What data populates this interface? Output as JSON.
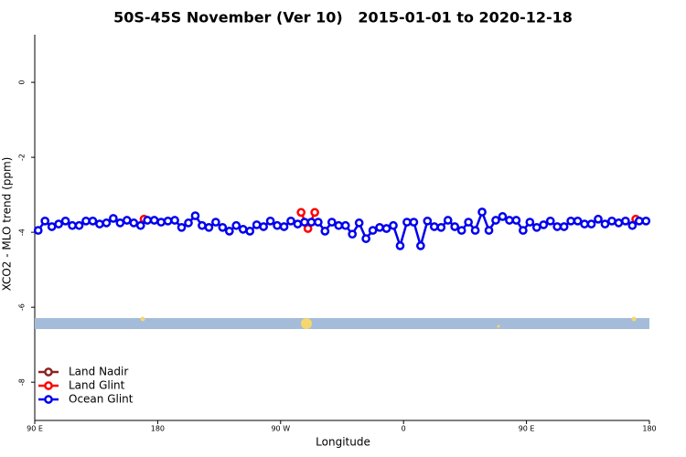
{
  "chart_data": {
    "type": "line",
    "title": "50S-45S November (Ver 10)   2015-01-01 to 2020-12-18",
    "x_label": "Longitude",
    "y_label": "XCO2 - MLO trend (ppm)",
    "xlim": [
      90,
      540
    ],
    "ylim": [
      -9.02,
      1.27
    ],
    "xticks": [
      {
        "value": 90,
        "label": "90 E"
      },
      {
        "value": 180,
        "label": "180"
      },
      {
        "value": 270,
        "label": "90 W"
      },
      {
        "value": 360,
        "label": "0"
      },
      {
        "value": 450,
        "label": "90 E"
      },
      {
        "value": 540,
        "label": "180"
      }
    ],
    "yticks": [
      0,
      -2,
      -4,
      -6,
      -8
    ],
    "legend": "bottom-left",
    "series": [
      {
        "name": "Land Nadir",
        "color": "#8b2323",
        "x": [],
        "values": []
      },
      {
        "name": "Land Glint",
        "color": "#ff0000",
        "x": [
          170,
          237.5,
          285,
          290,
          295,
          410,
          530
        ],
        "values": [
          -3.65,
          null,
          -3.47,
          -3.9,
          -3.47,
          null,
          -3.65
        ]
      },
      {
        "name": "Ocean Glint",
        "color": "#0000ee",
        "x": [
          92.5,
          97.5,
          102.5,
          107.5,
          112.5,
          117.5,
          122.5,
          127.5,
          132.5,
          137.5,
          142.5,
          147.5,
          152.5,
          157.5,
          162.5,
          167.5,
          172.5,
          177.5,
          182.5,
          187.5,
          192.5,
          197.5,
          202.5,
          207.5,
          212.5,
          217.5,
          222.5,
          227.5,
          232.5,
          237.5,
          242.5,
          247.5,
          252.5,
          257.5,
          262.5,
          267.5,
          272.5,
          277.5,
          282.5,
          287.5,
          292.5,
          297.5,
          302.5,
          307.5,
          312.5,
          317.5,
          322.5,
          327.5,
          332.5,
          337.5,
          342.5,
          347.5,
          352.5,
          357.5,
          362.5,
          367.5,
          372.5,
          377.5,
          382.5,
          387.5,
          392.5,
          397.5,
          402.5,
          407.5,
          412.5,
          417.5,
          422.5,
          427.5,
          432.5,
          437.5,
          442.5,
          447.5,
          452.5,
          457.5,
          462.5,
          467.5,
          472.5,
          477.5,
          482.5,
          487.5,
          492.5,
          497.5,
          502.5,
          507.5,
          512.5,
          517.5,
          522.5,
          527.5,
          532.5,
          537.5
        ],
        "values": [
          -3.95,
          -3.7,
          -3.85,
          -3.78,
          -3.7,
          -3.82,
          -3.82,
          -3.7,
          -3.7,
          -3.78,
          -3.75,
          -3.63,
          -3.75,
          -3.68,
          -3.75,
          -3.82,
          -3.68,
          -3.68,
          -3.73,
          -3.7,
          -3.68,
          -3.87,
          -3.75,
          -3.56,
          -3.82,
          -3.87,
          -3.73,
          -3.87,
          -3.97,
          -3.82,
          -3.92,
          -3.97,
          -3.8,
          -3.85,
          -3.7,
          -3.82,
          -3.85,
          -3.7,
          -3.78,
          -3.73,
          -3.73,
          -3.73,
          -3.97,
          -3.73,
          -3.82,
          -3.82,
          -4.05,
          -3.75,
          -4.17,
          -3.95,
          -3.87,
          -3.9,
          -3.82,
          -4.36,
          -3.73,
          -3.73,
          -4.36,
          -3.7,
          -3.85,
          -3.87,
          -3.68,
          -3.85,
          -3.95,
          -3.73,
          -3.95,
          -3.46,
          -3.95,
          -3.68,
          -3.58,
          -3.68,
          -3.68,
          -3.95,
          -3.73,
          -3.87,
          -3.8,
          -3.7,
          -3.85,
          -3.85,
          -3.7,
          -3.7,
          -3.78,
          -3.78,
          -3.65,
          -3.78,
          -3.7,
          -3.75,
          -3.7,
          -3.82,
          -3.7,
          -3.7
        ]
      }
    ]
  }
}
